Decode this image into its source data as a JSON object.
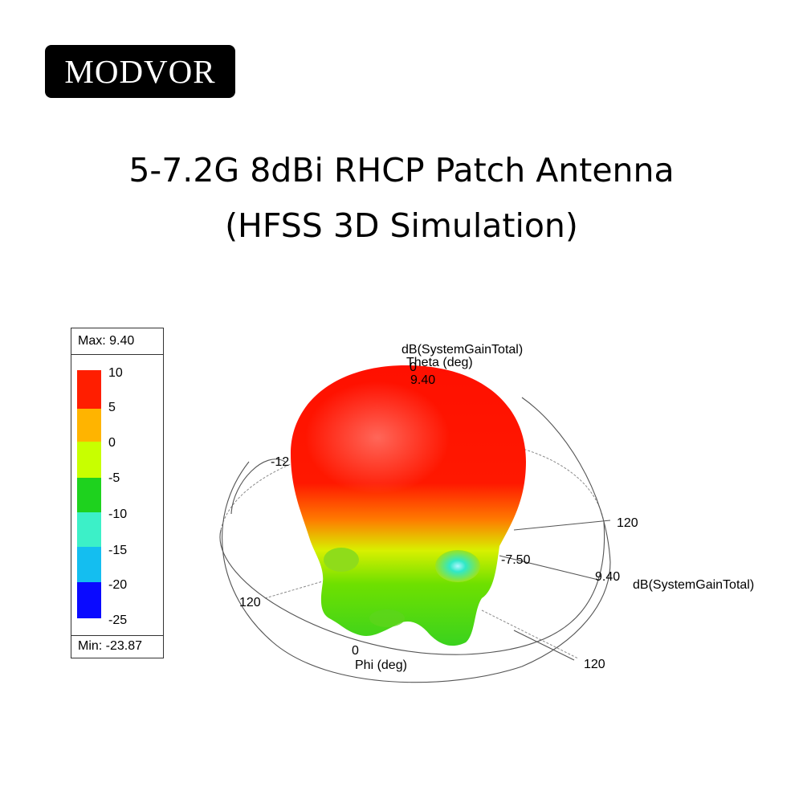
{
  "brand": {
    "logo_text": "MODVOR"
  },
  "heading": {
    "line1": "5-7.2G 8dBi RHCP Patch Antenna",
    "line2": "(HFSS 3D Simulation)"
  },
  "legend": {
    "max_label": "Max: 9.40",
    "min_label": "Min: -23.87",
    "ticks": [
      "10",
      "5",
      "0",
      "-5",
      "-10",
      "-15",
      "-20",
      "-25"
    ],
    "colors": [
      "#ff1e00",
      "#ffb400",
      "#c8ff00",
      "#1ed21e",
      "#3cf0c8",
      "#14bef0",
      "#0a0aff"
    ]
  },
  "plot": {
    "quantity_label_top": "dB(SystemGainTotal)",
    "theta_label": "Theta (deg)",
    "theta_zero": "0",
    "top_value": "9.40",
    "left_value": "-12",
    "mid_value": "-7.50",
    "right_value": "9.40",
    "quantity_label_right": "dB(SystemGainTotal)",
    "tick_120_a": "120",
    "tick_120_b": "120",
    "tick_120_c": "120",
    "phi_zero": "0",
    "phi_label": "Phi (deg)"
  }
}
